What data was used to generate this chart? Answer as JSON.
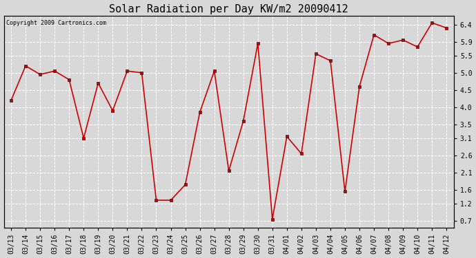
{
  "title": "Solar Radiation per Day KW/m2 20090412",
  "copyright": "Copyright 2009 Cartronics.com",
  "dates": [
    "03/13",
    "03/14",
    "03/15",
    "03/16",
    "03/17",
    "03/18",
    "03/19",
    "03/20",
    "03/21",
    "03/22",
    "03/23",
    "03/24",
    "03/25",
    "03/26",
    "03/27",
    "03/28",
    "03/29",
    "03/30",
    "03/31",
    "04/01",
    "04/02",
    "04/03",
    "04/04",
    "04/05",
    "04/06",
    "04/07",
    "04/08",
    "04/09",
    "04/10",
    "04/11",
    "04/12"
  ],
  "values": [
    4.2,
    5.2,
    4.95,
    5.05,
    4.8,
    3.1,
    4.7,
    3.9,
    5.05,
    5.0,
    1.3,
    1.3,
    1.75,
    3.85,
    5.05,
    2.15,
    3.6,
    5.85,
    0.75,
    3.15,
    2.65,
    5.55,
    5.35,
    1.55,
    4.6,
    6.1,
    5.85,
    5.95,
    5.75,
    6.45,
    6.3
  ],
  "line_color": "#cc0000",
  "marker": "s",
  "marker_size": 2.5,
  "line_width": 1.2,
  "bg_color": "#d8d8d8",
  "plot_bg_color": "#d8d8d8",
  "grid_color": "#ffffff",
  "yticks": [
    0.7,
    1.2,
    1.6,
    2.1,
    2.6,
    3.1,
    3.5,
    4.0,
    4.5,
    5.0,
    5.5,
    5.9,
    6.4
  ],
  "ylim": [
    0.5,
    6.65
  ],
  "title_fontsize": 11,
  "copyright_fontsize": 6,
  "tick_fontsize": 7
}
